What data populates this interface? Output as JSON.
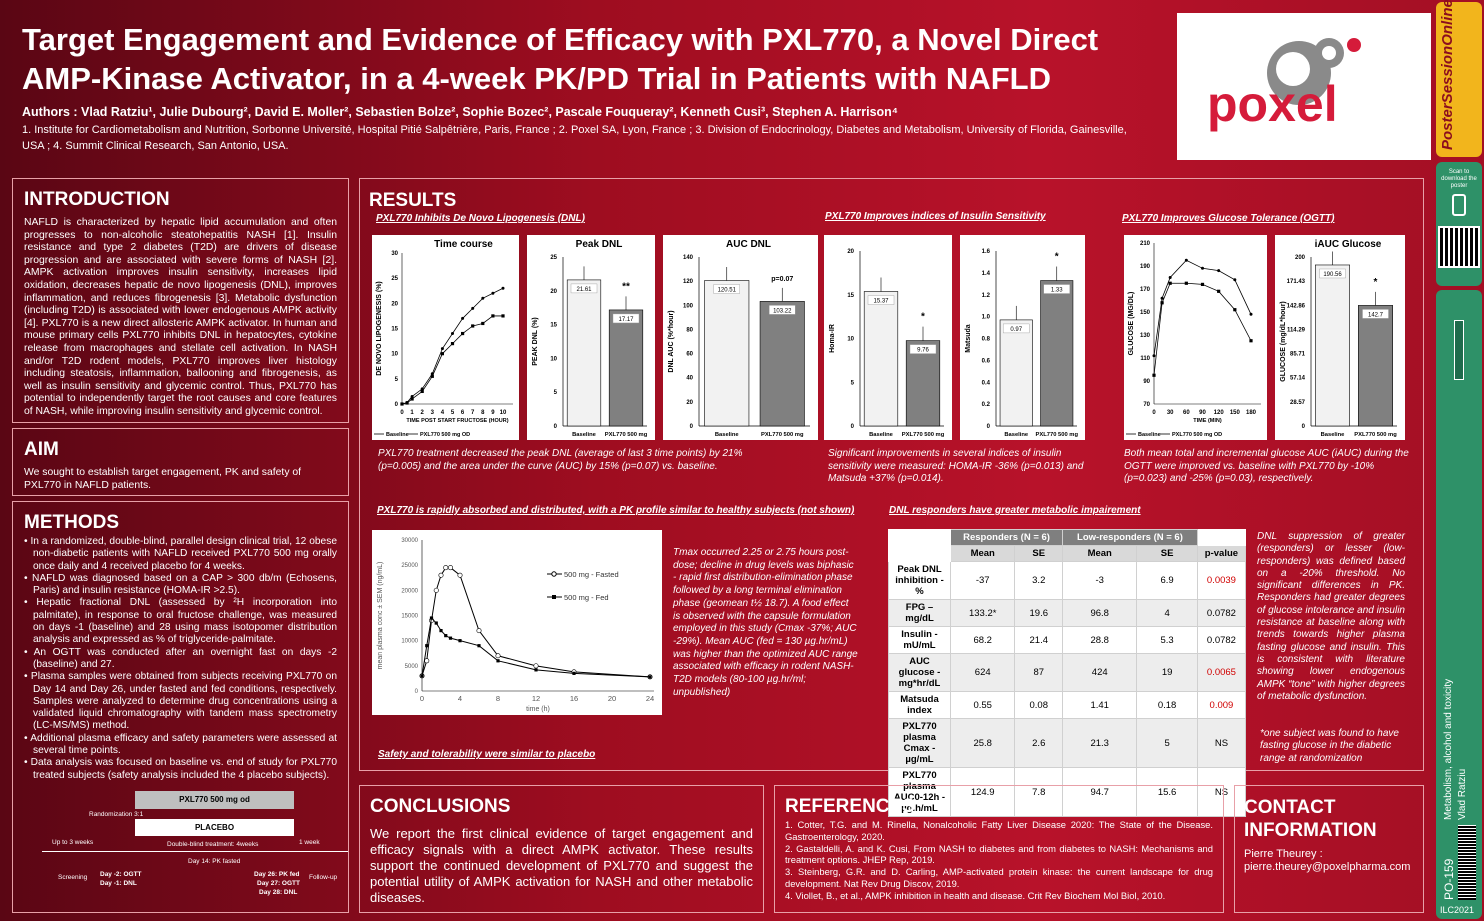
{
  "header": {
    "title": "Target Engagement and Evidence of Efficacy with PXL770, a Novel Direct AMP-Kinase Activator, in a 4-week PK/PD Trial in Patients with NAFLD",
    "authors": "Authors : Vlad Ratziu¹, Julie Dubourg², David E. Moller², Sebastien Bolze², Sophie Bozec², Pascale Fouqueray², Kenneth Cusi³, Stephen A. Harrison⁴",
    "affiliations": "1. Institute for Cardiometabolism and Nutrition, Sorbonne Université, Hospital Pitié Salpêtrière, Paris, France ; 2. Poxel SA, Lyon, France ; 3. Division of Endocrinology, Diabetes and Metabolism, University of Florida, Gainesville, USA ; 4. Summit Clinical Research, San Antonio, USA.",
    "logo_text": "poxel"
  },
  "intro": {
    "heading": "INTRODUCTION",
    "text": "NAFLD is characterized by hepatic lipid accumulation and often progresses to non-alcoholic steatohepatitis NASH [1]. Insulin resistance and type 2 diabetes (T2D) are drivers of disease progression and are associated with severe forms of NASH [2]. AMPK activation improves insulin sensitivity, increases lipid oxidation, decreases hepatic de novo lipogenesis (DNL), improves inflammation, and reduces fibrogenesis [3]. Metabolic dysfunction (including T2D) is associated with lower endogenous AMPK activity [4]. PXL770 is a new direct allosteric AMPK activator. In human and mouse primary cells PXL770 inhibits DNL in hepatocytes, cytokine release from macrophages and stellate cell activation. In NASH and/or T2D rodent models, PXL770 improves liver histology including steatosis, inflammation, ballooning and fibrogenesis, as well as insulin sensitivity and glycemic control. Thus, PXL770 has potential to independently target the root causes and core features of NASH, while improving insulin sensitivity and glycemic control."
  },
  "aim": {
    "heading": "AIM",
    "text": "We sought to establish target engagement, PK and safety of PXL770 in NAFLD patients."
  },
  "methods": {
    "heading": "METHODS",
    "items": [
      "• In a randomized, double-blind, parallel design clinical trial, 12 obese non-diabetic patients with NAFLD received PXL770 500 mg orally once daily and 4 received placebo for 4 weeks.",
      "• NAFLD was diagnosed based on a CAP > 300 db/m (Echosens, Paris) and insulin resistance (HOMA-IR >2.5).",
      "• Hepatic fractional DNL (assessed by ²H incorporation into palmitate), in response to oral fructose challenge, was measured on days -1 (baseline) and 28 using mass isotopomer distribution analysis and expressed as % of triglyceride-palmitate.",
      "• An OGTT was conducted after an overnight fast on days -2 (baseline) and 27.",
      "• Plasma samples were obtained from subjects receiving PXL770 on Day 14 and Day 26, under fasted and fed conditions, respectively. Samples were analyzed to determine drug concentrations using a validated liquid chromatography with tandem mass spectrometry (LC-MS/MS) method.",
      "• Additional plasma efficacy and safety parameters were assessed at several time points.",
      "• Data analysis was focused on baseline vs. end of study for PXL770 treated subjects (safety analysis included the 4 placebo subjects)."
    ],
    "design": {
      "drug": "PXL770 500 mg od",
      "placebo": "PLACEBO",
      "rand": "Randomization 3:1",
      "up3": "Up to 3 weeks",
      "dbt": "Double-blind treatment: 4weeks",
      "w1": "1 week",
      "d14": "Day 14: PK fasted",
      "screen": "Screening",
      "d2": "Day -2: OGTT",
      "d1": "Day -1: DNL",
      "d26": "Day 26: PK fed",
      "d27": "Day 27: OGTT",
      "d28": "Day 28: DNL",
      "follow": "Follow-up"
    }
  },
  "results": {
    "heading": "RESULTS",
    "sub_dnl": "PXL770 Inhibits De Novo Lipogenesis (DNL)",
    "sub_ins": "PXL770 Improves indices of  Insulin Sensitivity",
    "sub_ogtt": "PXL770 Improves Glucose Tolerance (OGTT)",
    "cap_dnl": "PXL770 treatment decreased the peak DNL (average of last 3 time points) by 21% (p=0.005) and the area under the curve (AUC) by 15% (p=0.07) vs. baseline.",
    "cap_ins": "Significant improvements in several indices of insulin sensitivity were measured: HOMA-IR -36% (p=0.013) and Matsuda +37% (p=0.014).",
    "cap_ogtt": "Both mean total and incremental glucose AUC (iAUC) during the OGTT were improved vs. baseline with PXL770 by -10% (p=0.023) and -25% (p=0.03), respectively.",
    "sub_pk": "PXL770 is rapidly absorbed and distributed, with a PK profile similar to healthy subjects (not shown)",
    "pk_text": "Tmax occurred 2.25 or 2.75 hours post-dose; decline in drug levels was biphasic - rapid first distribution-elimination phase followed by a long terminal elimination phase (geomean t½ 18.7). A food effect is observed with the capsule formulation employed in this study (Cmax -37%; AUC -29%). Mean AUC (fed = 130 µg.hr/mL) was higher than the optimized AUC range associated with efficacy in rodent NASH-T2D models (80-100 µg.hr/ml; unpublished)",
    "sub_safety": "Safety and tolerability were similar to placebo",
    "sub_resp": "DNL responders have greater metabolic impairement",
    "resp_text": "DNL suppression of greater (responders) or lesser (low-responders) was defined based on a -20% threshold. No significant differences in PK. Responders had greater degrees of glucose intolerance and insulin resistance at baseline along with trends towards higher plasma fasting glucose and insulin. This is consistent with literature showing lower endogenous AMPK “tone” with higher degrees of metabolic dysfunction.",
    "resp_note": "*one subject was found to have fasting glucose in the diabetic range at randomization"
  },
  "table": {
    "group1": "Responders (N = 6)",
    "group2": "Low-responders (N = 6)",
    "cols": [
      "Mean",
      "SE",
      "Mean",
      "SE",
      "p-value"
    ],
    "rows": [
      {
        "label": "Peak DNL inhibition - %",
        "v": [
          "-37",
          "3.2",
          "-3",
          "6.9",
          "0.0039"
        ],
        "sig": true
      },
      {
        "label": "FPG – mg/dL",
        "v": [
          "133.2*",
          "19.6",
          "96.8",
          "4",
          "0.0782"
        ],
        "sig": false
      },
      {
        "label": "Insulin - mU/mL",
        "v": [
          "68.2",
          "21.4",
          "28.8",
          "5.3",
          "0.0782"
        ],
        "sig": false
      },
      {
        "label": "AUC glucose - mg*hr/dL",
        "v": [
          "624",
          "87",
          "424",
          "19",
          "0.0065"
        ],
        "sig": true
      },
      {
        "label": "Matsuda index",
        "v": [
          "0.55",
          "0.08",
          "1.41",
          "0.18",
          "0.009"
        ],
        "sig": true
      },
      {
        "label": "PXL770 plasma Cmax - µg/mL",
        "v": [
          "25.8",
          "2.6",
          "21.3",
          "5",
          "NS"
        ],
        "sig": false
      },
      {
        "label": "PXL770 plasma AUC0-12h - µg.h/mL",
        "v": [
          "124.9",
          "7.8",
          "94.7",
          "15.6",
          "NS"
        ],
        "sig": false
      }
    ]
  },
  "conclusions": {
    "heading": "CONCLUSIONS",
    "text": "We report the first clinical evidence of target engagement and efficacy signals with a direct AMPK activator. These results support the continued development of PXL770 and suggest  the potential utility of AMPK activation for NASH and other metabolic diseases."
  },
  "references": {
    "heading": "REFERENCES",
    "items": [
      "1.     Cotter, T.G. and M. Rinella, Nonalcoholic Fatty Liver Disease 2020: The State of the Disease. Gastroenterology, 2020.",
      "2.     Gastaldelli, A. and K. Cusi, From NASH to diabetes and from diabetes to NASH: Mechanisms and treatment options. JHEP Rep, 2019.",
      "3.     Steinberg, G.R. and D. Carling, AMP-activated protein kinase: the current landscape for drug development. Nat Rev Drug Discov, 2019.",
      "4.     Viollet, B., et al., AMPK inhibition in health and disease. Crit Rev Biochem Mol Biol, 2010."
    ]
  },
  "contact": {
    "heading": "CONTACT INFORMATION",
    "name": "Pierre Theurey :",
    "email": "pierre.theurey@poxelpharma.com"
  },
  "sidebar": {
    "brand": "PosterSessionOnline",
    "scan": "Scan to download the poster",
    "topic": "Metabolism, alcohol and toxicity",
    "author": "Vlad Ratziu",
    "code": "PO-159",
    "conf": "ILC2021"
  },
  "chart_data": [
    {
      "id": "timecourse",
      "type": "line",
      "title": "Time course",
      "xlabel": "TIME POST START FRUCTOSE (HOUR)",
      "ylabel": "DE NOVO LIPOGENESIS (%)",
      "ylim": [
        0,
        30
      ],
      "x": [
        0,
        0.5,
        1,
        2,
        3,
        4,
        5,
        6,
        7,
        8,
        9,
        10
      ],
      "series": [
        {
          "name": "Baseline",
          "values": [
            0,
            0.3,
            1.5,
            3,
            6,
            11,
            14,
            17,
            19,
            21,
            22,
            23
          ]
        },
        {
          "name": "PXL770 500 mg OD",
          "values": [
            0,
            0.2,
            1,
            2.5,
            5.5,
            10,
            12,
            14,
            15.5,
            16,
            17.5,
            17.5
          ]
        }
      ]
    },
    {
      "id": "peakdnl",
      "type": "bar",
      "title": "Peak DNL",
      "ylabel": "PEAK DNL (%)",
      "ylim": [
        0,
        25
      ],
      "categories": [
        "Baseline",
        "PXL770 500 mg"
      ],
      "values": [
        21.61,
        17.17
      ],
      "sig": "**"
    },
    {
      "id": "aucdnl",
      "type": "bar",
      "title": "AUC DNL",
      "ylabel": "DNL AUC (%*hour)",
      "ylim": [
        0,
        140
      ],
      "categories": [
        "Baseline",
        "PXL770 500 mg"
      ],
      "values": [
        120.51,
        103.22
      ],
      "sig": "p=0.07"
    },
    {
      "id": "homa",
      "type": "bar",
      "title": "",
      "ylabel": "Homa-IR",
      "ylim": [
        0,
        20
      ],
      "categories": [
        "Baseline",
        "PXL770 500 mg"
      ],
      "values": [
        15.37,
        9.76
      ],
      "sig": "*"
    },
    {
      "id": "matsuda",
      "type": "bar",
      "title": "",
      "ylabel": "Matsuda",
      "ylim": [
        0,
        1.6
      ],
      "categories": [
        "Baseline",
        "PXL770 500 mg"
      ],
      "values": [
        0.97,
        1.33
      ],
      "sig": "*"
    },
    {
      "id": "ogtt",
      "type": "line",
      "title": "",
      "xlabel": "TIME (MIN)",
      "ylabel": "GLUCOSE (MG/DL)",
      "ylim": [
        70,
        210
      ],
      "x": [
        0,
        15,
        30,
        60,
        90,
        120,
        150,
        180
      ],
      "series": [
        {
          "name": "Baseline",
          "values": [
            112,
            162,
            180,
            195,
            188,
            186,
            178,
            148
          ]
        },
        {
          "name": "PXL770 500 mg OD",
          "values": [
            95,
            158,
            175,
            175,
            174,
            168,
            152,
            125
          ]
        }
      ]
    },
    {
      "id": "iauc",
      "type": "bar",
      "title": "iAUC Glucose",
      "ylabel": "GLUCOSE (mg/dL*hour)",
      "ylim": [
        0,
        200
      ],
      "categories": [
        "Baseline",
        "PXL770 500 mg"
      ],
      "values": [
        190.56,
        142.7
      ],
      "sig": "*"
    },
    {
      "id": "pk",
      "type": "line",
      "xlabel": "time (h)",
      "ylabel": "mean plasma conc ± SEM (ng/mL)",
      "ylim": [
        0,
        30000
      ],
      "x": [
        0,
        0.5,
        1,
        1.5,
        2,
        2.5,
        3,
        4,
        6,
        8,
        12,
        16,
        24
      ],
      "series": [
        {
          "name": "500 mg - Fasted",
          "values": [
            3000,
            6000,
            14000,
            20000,
            23000,
            24500,
            24500,
            23000,
            12000,
            7000,
            5000,
            3800,
            2800
          ]
        },
        {
          "name": "500 mg - Fed",
          "values": [
            3000,
            9000,
            14500,
            13500,
            12000,
            11000,
            10500,
            10000,
            9000,
            6000,
            4200,
            3500,
            2800
          ]
        }
      ]
    }
  ]
}
